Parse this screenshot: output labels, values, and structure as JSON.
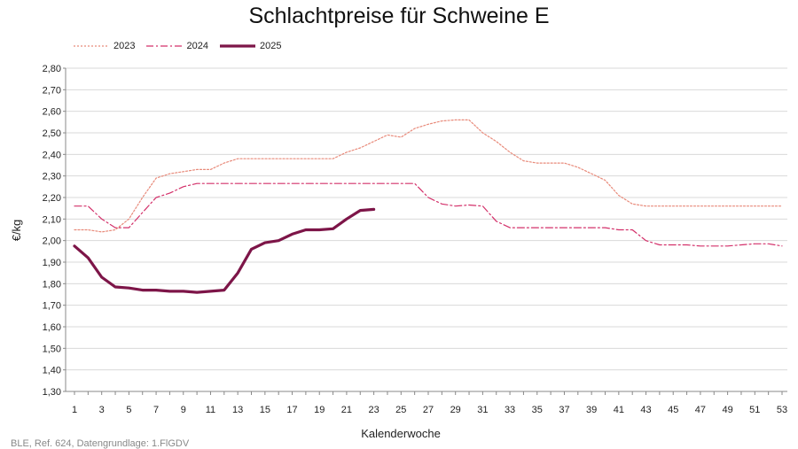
{
  "title": "Schlachtpreise für Schweine E",
  "source": "BLE, Ref. 624, Datengrundlage: 1.FlGDV",
  "chart_data": {
    "type": "line",
    "title": "Schlachtpreise für Schweine E",
    "xlabel": "Kalenderwoche",
    "ylabel": "€/kg",
    "xlim": [
      1,
      53
    ],
    "ylim": [
      1.3,
      2.8
    ],
    "y_tick_step": 0.1,
    "y_tick_labels": [
      "1,30",
      "1,40",
      "1,50",
      "1,60",
      "1,70",
      "1,80",
      "1,90",
      "2,00",
      "2,10",
      "2,20",
      "2,30",
      "2,40",
      "2,50",
      "2,60",
      "2,70",
      "2,80"
    ],
    "x_tick_labels": [
      "1",
      "3",
      "5",
      "7",
      "9",
      "11",
      "13",
      "15",
      "17",
      "19",
      "21",
      "23",
      "25",
      "27",
      "29",
      "31",
      "33",
      "35",
      "37",
      "39",
      "41",
      "43",
      "45",
      "47",
      "49",
      "51",
      "53"
    ],
    "grid": true,
    "legend_position": "top-left",
    "series": [
      {
        "name": "2023",
        "color": "#e88a7a",
        "style": "dotted",
        "x": [
          1,
          2,
          3,
          4,
          5,
          6,
          7,
          8,
          9,
          10,
          11,
          12,
          13,
          14,
          15,
          16,
          17,
          18,
          19,
          20,
          21,
          22,
          23,
          24,
          25,
          26,
          27,
          28,
          29,
          30,
          31,
          32,
          33,
          34,
          35,
          36,
          37,
          38,
          39,
          40,
          41,
          42,
          43,
          44,
          45,
          46,
          47,
          48,
          49,
          50,
          51,
          52,
          53
        ],
        "values": [
          2.05,
          2.05,
          2.04,
          2.05,
          2.1,
          2.2,
          2.29,
          2.31,
          2.32,
          2.33,
          2.33,
          2.36,
          2.38,
          2.38,
          2.38,
          2.38,
          2.38,
          2.38,
          2.38,
          2.38,
          2.41,
          2.43,
          2.46,
          2.49,
          2.48,
          2.52,
          2.54,
          2.555,
          2.56,
          2.56,
          2.5,
          2.46,
          2.41,
          2.37,
          2.36,
          2.36,
          2.36,
          2.34,
          2.31,
          2.28,
          2.21,
          2.17,
          2.16,
          2.16,
          2.16,
          2.16,
          2.16,
          2.16,
          2.16,
          2.16,
          2.16,
          2.16,
          2.16
        ]
      },
      {
        "name": "2024",
        "color": "#d3306a",
        "style": "dashdot",
        "x": [
          1,
          2,
          3,
          4,
          5,
          6,
          7,
          8,
          9,
          10,
          11,
          12,
          13,
          14,
          15,
          16,
          17,
          18,
          19,
          20,
          21,
          22,
          23,
          24,
          25,
          26,
          27,
          28,
          29,
          30,
          31,
          32,
          33,
          34,
          35,
          36,
          37,
          38,
          39,
          40,
          41,
          42,
          43,
          44,
          45,
          46,
          47,
          48,
          49,
          50,
          51,
          52,
          53
        ],
        "values": [
          2.16,
          2.16,
          2.1,
          2.06,
          2.06,
          2.13,
          2.2,
          2.22,
          2.25,
          2.265,
          2.265,
          2.265,
          2.265,
          2.265,
          2.265,
          2.265,
          2.265,
          2.265,
          2.265,
          2.265,
          2.265,
          2.265,
          2.265,
          2.265,
          2.265,
          2.265,
          2.2,
          2.17,
          2.16,
          2.165,
          2.16,
          2.09,
          2.06,
          2.06,
          2.06,
          2.06,
          2.06,
          2.06,
          2.06,
          2.06,
          2.05,
          2.05,
          2.0,
          1.98,
          1.98,
          1.98,
          1.975,
          1.975,
          1.975,
          1.98,
          1.985,
          1.985,
          1.975
        ]
      },
      {
        "name": "2025",
        "color": "#7d1548",
        "style": "solid",
        "x": [
          1,
          2,
          3,
          4,
          5,
          6,
          7,
          8,
          9,
          10,
          11,
          12,
          13,
          14,
          15,
          16,
          17,
          18,
          19,
          20,
          21,
          22,
          23
        ],
        "values": [
          1.975,
          1.92,
          1.83,
          1.785,
          1.78,
          1.77,
          1.77,
          1.765,
          1.765,
          1.76,
          1.765,
          1.77,
          1.85,
          1.96,
          1.99,
          2.0,
          2.03,
          2.05,
          2.05,
          2.055,
          2.1,
          2.14,
          2.145
        ]
      }
    ]
  }
}
